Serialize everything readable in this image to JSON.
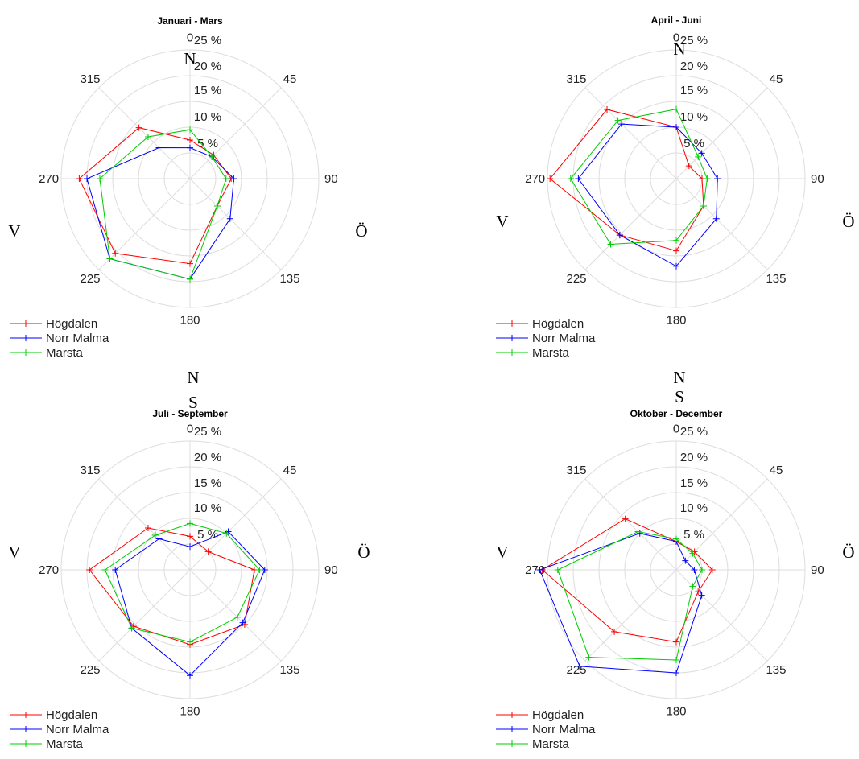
{
  "chart_data": [
    {
      "type": "radar",
      "title": "Januari - Mars",
      "directions": [
        0,
        45,
        90,
        135,
        180,
        225,
        270,
        315
      ],
      "angle_labels": [
        "0",
        "45",
        "90",
        "135",
        "180",
        "225",
        "270",
        "315"
      ],
      "radial_ticks": [
        "5 %",
        "10 %",
        "15 %",
        "20 %",
        "25 %"
      ],
      "rlim": [
        0,
        25
      ],
      "compass": [
        "N",
        "Ö",
        "V"
      ],
      "legend_position": "bottom-left",
      "series": [
        {
          "name": "Högdalen",
          "color": "#ff0000",
          "values": [
            7.5,
            6.5,
            8.0,
            7.5,
            16.5,
            20.5,
            21.5,
            14.0
          ]
        },
        {
          "name": "Norr Malma",
          "color": "#0000ff",
          "values": [
            6.0,
            6.0,
            8.5,
            11.0,
            19.5,
            22.0,
            20.0,
            8.5
          ]
        },
        {
          "name": "Marsta",
          "color": "#00cc00",
          "values": [
            9.5,
            6.0,
            7.0,
            7.5,
            19.5,
            22.0,
            17.5,
            11.5
          ]
        }
      ]
    },
    {
      "type": "radar",
      "title": "April - Juni",
      "directions": [
        0,
        45,
        90,
        135,
        180,
        225,
        270,
        315
      ],
      "angle_labels": [
        "0",
        "45",
        "90",
        "135",
        "180",
        "225",
        "270",
        "315"
      ],
      "radial_ticks": [
        "5 %",
        "10 %",
        "15 %",
        "20 %",
        "25 %"
      ],
      "rlim": [
        0,
        25
      ],
      "compass": [
        "N",
        "Ö",
        "V"
      ],
      "legend_position": "bottom-left",
      "series": [
        {
          "name": "Högdalen",
          "color": "#ff0000",
          "values": [
            10.0,
            3.5,
            5.0,
            7.5,
            14.0,
            15.5,
            24.5,
            19.0
          ]
        },
        {
          "name": "Norr Malma",
          "color": "#0000ff",
          "values": [
            10.0,
            7.0,
            8.0,
            11.0,
            17.0,
            15.5,
            19.0,
            15.0
          ]
        },
        {
          "name": "Marsta",
          "color": "#00cc00",
          "values": [
            13.5,
            6.0,
            6.0,
            7.5,
            12.0,
            18.0,
            20.5,
            16.0
          ]
        }
      ]
    },
    {
      "type": "radar",
      "title": "Juli - September",
      "directions": [
        0,
        45,
        90,
        135,
        180,
        225,
        270,
        315
      ],
      "angle_labels": [
        "0",
        "45",
        "90",
        "135",
        "180",
        "225",
        "270",
        "315"
      ],
      "radial_ticks": [
        "5 %",
        "10 %",
        "15 %",
        "20 %",
        "25 %"
      ],
      "rlim": [
        0,
        25
      ],
      "compass": [
        "N",
        "S",
        "Ö",
        "V"
      ],
      "legend_position": "bottom-left",
      "series": [
        {
          "name": "Högdalen",
          "color": "#ff0000",
          "values": [
            6.5,
            5.0,
            12.5,
            15.0,
            14.5,
            15.5,
            19.5,
            11.5
          ]
        },
        {
          "name": "Norr Malma",
          "color": "#0000ff",
          "values": [
            4.5,
            10.5,
            14.5,
            14.5,
            20.5,
            16.0,
            14.5,
            8.5
          ]
        },
        {
          "name": "Marsta",
          "color": "#00cc00",
          "values": [
            9.0,
            10.0,
            13.5,
            13.0,
            14.0,
            16.0,
            16.5,
            9.5
          ]
        }
      ]
    },
    {
      "type": "radar",
      "title": "Oktober - December",
      "directions": [
        0,
        45,
        90,
        135,
        180,
        225,
        270,
        315
      ],
      "angle_labels": [
        "0",
        "45",
        "90",
        "135",
        "180",
        "225",
        "270",
        "315"
      ],
      "radial_ticks": [
        "5 %",
        "10 %",
        "15 %",
        "20 %",
        "25 %"
      ],
      "rlim": [
        0,
        25
      ],
      "compass": [
        "N",
        "S",
        "Ö",
        "V"
      ],
      "legend_position": "bottom-left",
      "series": [
        {
          "name": "Högdalen",
          "color": "#ff0000",
          "values": [
            5.5,
            5.0,
            7.0,
            6.0,
            14.0,
            17.0,
            26.0,
            14.0
          ]
        },
        {
          "name": "Norr Malma",
          "color": "#0000ff",
          "values": [
            5.5,
            2.5,
            3.5,
            7.0,
            20.0,
            26.5,
            26.5,
            10.0
          ]
        },
        {
          "name": "Marsta",
          "color": "#00cc00",
          "values": [
            6.0,
            4.5,
            5.0,
            4.5,
            17.5,
            24.0,
            23.0,
            10.5
          ]
        }
      ]
    }
  ]
}
